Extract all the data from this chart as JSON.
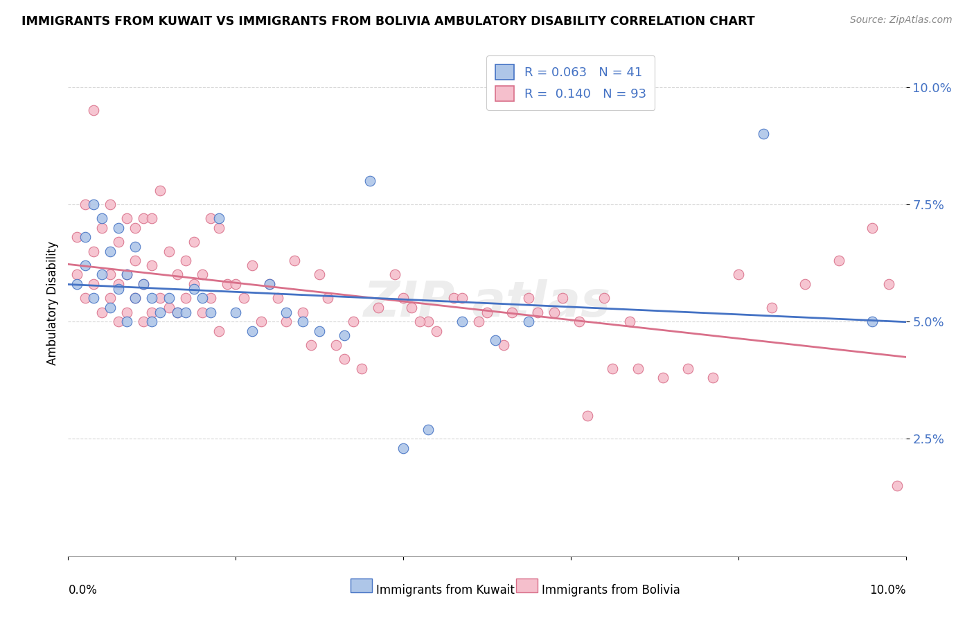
{
  "title": "IMMIGRANTS FROM KUWAIT VS IMMIGRANTS FROM BOLIVIA AMBULATORY DISABILITY CORRELATION CHART",
  "source": "Source: ZipAtlas.com",
  "ylabel": "Ambulatory Disability",
  "kuwait_R": 0.063,
  "kuwait_N": 41,
  "bolivia_R": 0.14,
  "bolivia_N": 93,
  "kuwait_color": "#aec6e8",
  "bolivia_color": "#f5bfcc",
  "kuwait_line_color": "#4472c4",
  "bolivia_line_color": "#d9708a",
  "background_color": "#ffffff",
  "grid_color": "#cccccc",
  "kuwait_points_x": [
    0.001,
    0.002,
    0.002,
    0.003,
    0.003,
    0.004,
    0.004,
    0.005,
    0.005,
    0.006,
    0.006,
    0.007,
    0.007,
    0.008,
    0.008,
    0.009,
    0.01,
    0.01,
    0.011,
    0.012,
    0.013,
    0.014,
    0.015,
    0.016,
    0.017,
    0.018,
    0.02,
    0.022,
    0.024,
    0.026,
    0.028,
    0.03,
    0.033,
    0.036,
    0.04,
    0.043,
    0.047,
    0.051,
    0.055,
    0.083,
    0.096
  ],
  "kuwait_points_y": [
    0.058,
    0.062,
    0.068,
    0.055,
    0.075,
    0.06,
    0.072,
    0.053,
    0.065,
    0.057,
    0.07,
    0.05,
    0.06,
    0.055,
    0.066,
    0.058,
    0.05,
    0.055,
    0.052,
    0.055,
    0.052,
    0.052,
    0.057,
    0.055,
    0.052,
    0.072,
    0.052,
    0.048,
    0.058,
    0.052,
    0.05,
    0.048,
    0.047,
    0.08,
    0.023,
    0.027,
    0.05,
    0.046,
    0.05,
    0.09,
    0.05
  ],
  "bolivia_points_x": [
    0.001,
    0.001,
    0.002,
    0.002,
    0.003,
    0.003,
    0.003,
    0.004,
    0.004,
    0.005,
    0.005,
    0.005,
    0.006,
    0.006,
    0.006,
    0.007,
    0.007,
    0.007,
    0.008,
    0.008,
    0.008,
    0.009,
    0.009,
    0.009,
    0.01,
    0.01,
    0.01,
    0.011,
    0.011,
    0.012,
    0.012,
    0.013,
    0.013,
    0.014,
    0.014,
    0.015,
    0.015,
    0.016,
    0.016,
    0.017,
    0.017,
    0.018,
    0.018,
    0.019,
    0.02,
    0.021,
    0.022,
    0.023,
    0.024,
    0.025,
    0.026,
    0.027,
    0.028,
    0.029,
    0.03,
    0.031,
    0.032,
    0.033,
    0.034,
    0.035,
    0.037,
    0.039,
    0.041,
    0.043,
    0.046,
    0.049,
    0.052,
    0.055,
    0.058,
    0.061,
    0.064,
    0.067,
    0.04,
    0.042,
    0.044,
    0.047,
    0.05,
    0.053,
    0.056,
    0.059,
    0.062,
    0.065,
    0.068,
    0.071,
    0.074,
    0.077,
    0.08,
    0.084,
    0.088,
    0.092,
    0.096,
    0.098,
    0.099
  ],
  "bolivia_points_y": [
    0.06,
    0.068,
    0.055,
    0.075,
    0.058,
    0.065,
    0.095,
    0.052,
    0.07,
    0.055,
    0.06,
    0.075,
    0.05,
    0.058,
    0.067,
    0.06,
    0.072,
    0.052,
    0.055,
    0.063,
    0.07,
    0.05,
    0.058,
    0.072,
    0.052,
    0.062,
    0.072,
    0.055,
    0.078,
    0.053,
    0.065,
    0.052,
    0.06,
    0.055,
    0.063,
    0.058,
    0.067,
    0.052,
    0.06,
    0.055,
    0.072,
    0.07,
    0.048,
    0.058,
    0.058,
    0.055,
    0.062,
    0.05,
    0.058,
    0.055,
    0.05,
    0.063,
    0.052,
    0.045,
    0.06,
    0.055,
    0.045,
    0.042,
    0.05,
    0.04,
    0.053,
    0.06,
    0.053,
    0.05,
    0.055,
    0.05,
    0.045,
    0.055,
    0.052,
    0.05,
    0.055,
    0.05,
    0.055,
    0.05,
    0.048,
    0.055,
    0.052,
    0.052,
    0.052,
    0.055,
    0.03,
    0.04,
    0.04,
    0.038,
    0.04,
    0.038,
    0.06,
    0.053,
    0.058,
    0.063,
    0.07,
    0.058,
    0.015
  ],
  "xlim": [
    0.0,
    0.1
  ],
  "ylim": [
    0.0,
    0.108
  ],
  "yticks": [
    0.025,
    0.05,
    0.075,
    0.1
  ],
  "ytick_labels": [
    "2.5%",
    "5.0%",
    "7.5%",
    "10.0%"
  ]
}
